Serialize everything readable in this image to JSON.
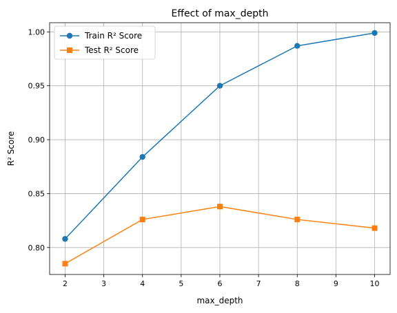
{
  "chart_data": {
    "type": "line",
    "title": "Effect of max_depth",
    "xlabel": "max_depth",
    "ylabel": "R² Score",
    "x": [
      2,
      4,
      6,
      8,
      10
    ],
    "xlim": [
      1.6,
      10.4
    ],
    "ylim": [
      0.775,
      1.0085
    ],
    "xticks": [
      2,
      3,
      4,
      5,
      6,
      7,
      8,
      9,
      10
    ],
    "yticks": [
      0.8,
      0.85,
      0.9,
      0.95,
      1.0
    ],
    "ytick_labels": [
      "0.80",
      "0.85",
      "0.90",
      "0.95",
      "1.00"
    ],
    "grid": true,
    "legend_position": "top-left",
    "series": [
      {
        "name": "Train R² Score",
        "values": [
          0.808,
          0.884,
          0.95,
          0.987,
          0.999
        ],
        "color": "#1f77b4",
        "marker": "circle"
      },
      {
        "name": "Test R² Score",
        "values": [
          0.785,
          0.826,
          0.838,
          0.826,
          0.818
        ],
        "color": "#ff7f0e",
        "marker": "square"
      }
    ]
  }
}
